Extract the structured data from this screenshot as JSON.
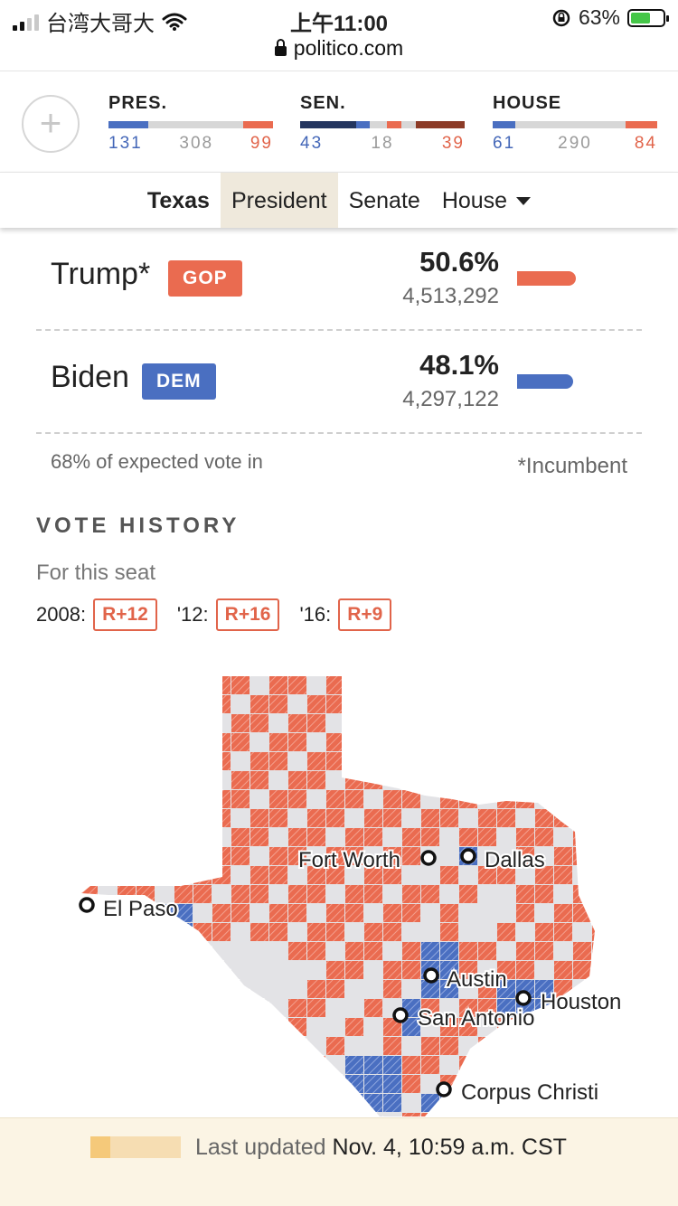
{
  "status_bar": {
    "carrier": "台湾大哥大",
    "time": "上午11:00",
    "battery": "63%",
    "battery_level": 0.63
  },
  "browser": {
    "url": "politico.com"
  },
  "scoreboard": {
    "pres": {
      "label": "PRES.",
      "dem": "131",
      "undecided": "308",
      "rep": "99",
      "dem_share": 0.244,
      "rep_share": 0.184
    },
    "sen": {
      "label": "SEN.",
      "dem": "43",
      "undecided": "18",
      "rep": "39",
      "dem_share": 0.43,
      "rep_share": 0.39
    },
    "house": {
      "label": "HOUSE",
      "dem": "61",
      "undecided": "290",
      "rep": "84",
      "dem_share": 0.14,
      "rep_share": 0.193
    }
  },
  "tabs": {
    "state": "Texas",
    "president": "President",
    "senate": "Senate",
    "house": "House"
  },
  "candidates": [
    {
      "name": "Trump*",
      "party": "GOP",
      "pct": "50.6%",
      "votes": "4,513,292",
      "share": 0.506,
      "color": "#ea6b50"
    },
    {
      "name": "Biden",
      "party": "DEM",
      "pct": "48.1%",
      "votes": "4,297,122",
      "share": 0.481,
      "color": "#4a6fc1"
    }
  ],
  "notes": {
    "expected": "68% of expected vote in",
    "incumbent": "*Incumbent"
  },
  "vote_history": {
    "title": "VOTE HISTORY",
    "subtitle": "For this seat",
    "items": [
      {
        "year": "2008:",
        "margin": "R+12"
      },
      {
        "year": "'12:",
        "margin": "R+16"
      },
      {
        "year": "'16:",
        "margin": "R+9"
      }
    ]
  },
  "map": {
    "cities": [
      "Fort Worth",
      "Dallas",
      "El Paso",
      "Austin",
      "San Antonio",
      "Houston",
      "Corpus Christi"
    ],
    "colors": {
      "rep": "#ea6b50",
      "dem": "#4a6fc1",
      "none": "#e3e3e6"
    }
  },
  "footer": {
    "prefix": "Last updated",
    "time": "Nov. 4, 10:59 a.m. CST",
    "progress": 0.22
  }
}
